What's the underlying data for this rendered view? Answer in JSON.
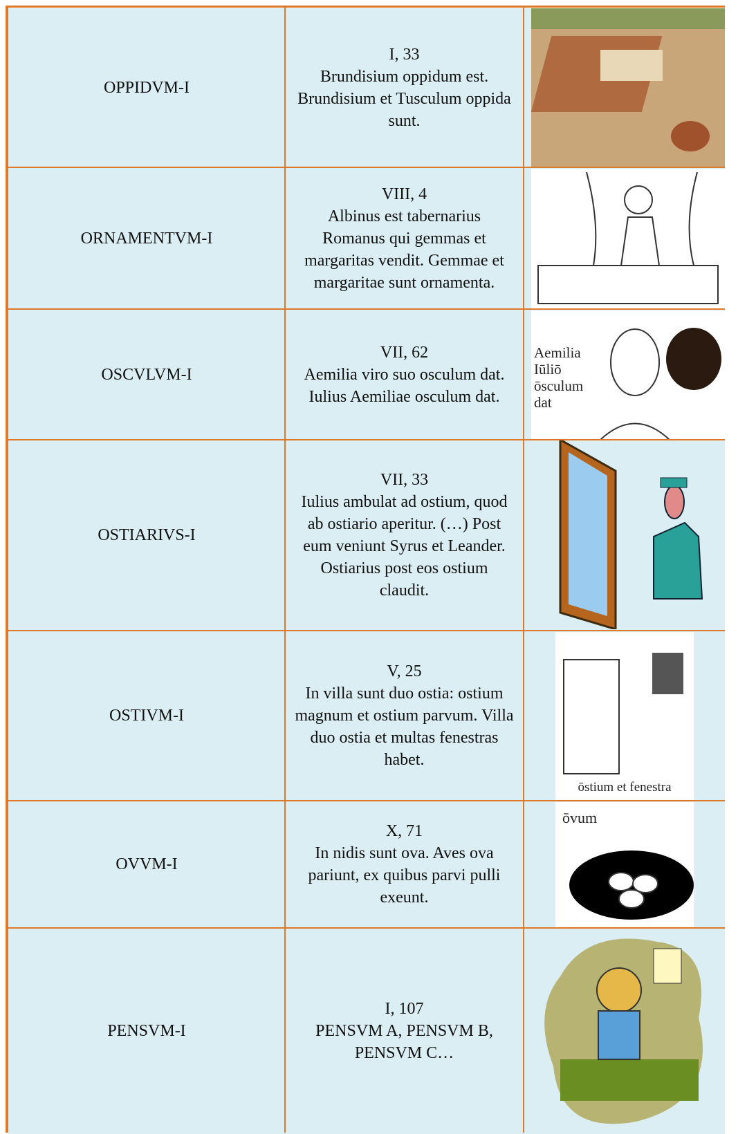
{
  "table": {
    "rows": [
      {
        "word": "OPPIDVM-I",
        "ref": "I, 33",
        "text": "Brundisium oppidum est. Brundisium et Tusculum oppida sunt."
      },
      {
        "word": "ORNAMENTVM-I",
        "ref": "VIII, 4",
        "text": "Albinus est tabernarius Romanus qui gemmas et margaritas vendit. Gemmae et margaritae sunt ornamenta."
      },
      {
        "word": "OSCVLVM-I",
        "ref": "VII, 62",
        "text": "Aemilia viro suo osculum dat. Iulius Aemiliae osculum dat.",
        "image_text": [
          "Aemilia",
          "Iūliō",
          "ōsculum",
          "dat"
        ]
      },
      {
        "word": "OSTIARIVS-I",
        "ref": "VII, 33",
        "text": "Iulius ambulat ad ostium, quod ab ostiario aperitur. (…) Post eum veniunt Syrus et Leander. Ostiarius post eos ostium claudit."
      },
      {
        "word": "OSTIVM-I",
        "ref": "V, 25",
        "text": "In villa sunt duo ostia: ostium magnum et ostium parvum. Villa duo ostia et multas fenestras habet.",
        "image_text": [
          "ōstium et fenestra"
        ]
      },
      {
        "word": "OVVM-I",
        "ref": "X, 71",
        "text": "In nidis sunt ova. Aves ova pariunt, ex quibus parvi pulli exeunt.",
        "image_text": [
          "ōvum"
        ]
      },
      {
        "word": "PENSVM-I",
        "ref": "I, 107",
        "text": "PENSVM A, PENSVM B, PENSVM C…"
      }
    ]
  }
}
